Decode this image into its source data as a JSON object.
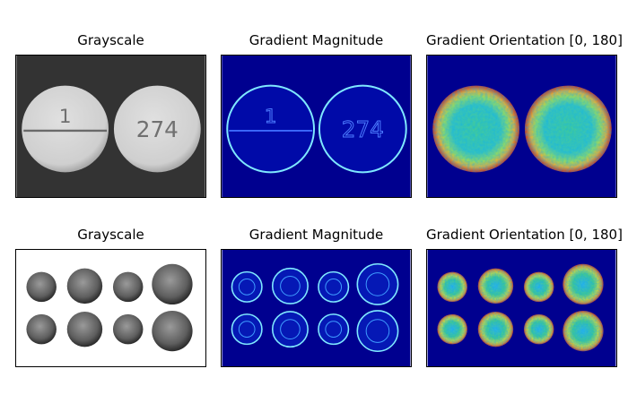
{
  "figure": {
    "row1": {
      "grayscale_title": "Grayscale",
      "magnitude_title": "Gradient Magnitude",
      "orientation_title": "Gradient Orientation [0, 180]",
      "pill_labels": [
        "1",
        "274"
      ]
    },
    "row2": {
      "grayscale_title": "Grayscale",
      "magnitude_title": "Gradient Magnitude",
      "orientation_title": "Gradient Orientation [0, 180]"
    }
  },
  "colors": {
    "dark_background": "#333333",
    "jet_background": "#00008f",
    "pill_gray": "#d3d3d3",
    "edge_cyan": "#7fe8ff"
  }
}
